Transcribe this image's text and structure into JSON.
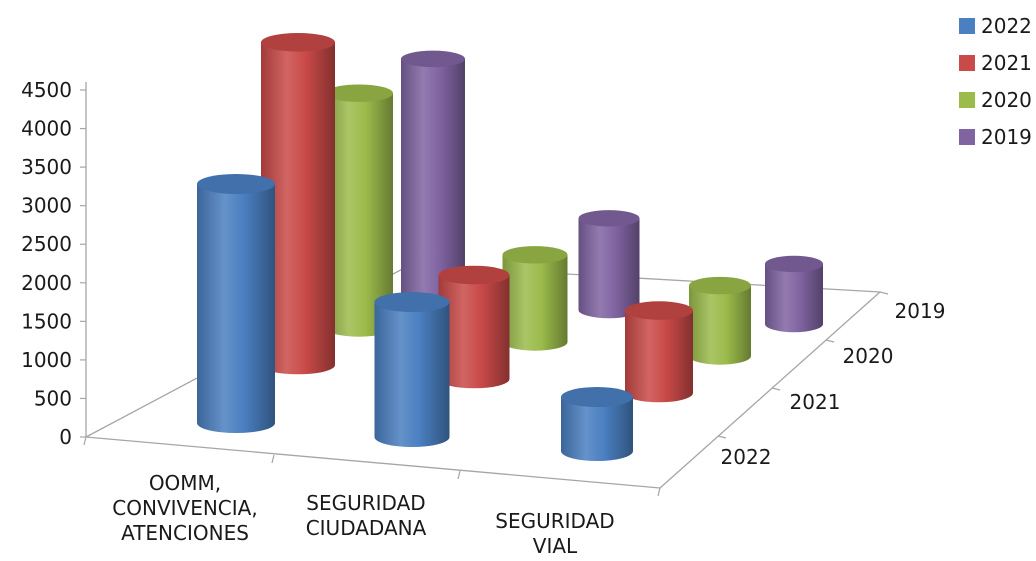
{
  "chart_data": {
    "type": "bar",
    "style": "3d-cylinder",
    "categories": [
      "OOMM, CONVIVENCIA, ATENCIONES",
      "SEGURIDAD CIUDADANA",
      "SEGURIDAD VIAL"
    ],
    "category_lines": [
      [
        "OOMM,",
        "CONVIVENCIA,",
        "ATENCIONES"
      ],
      [
        "SEGURIDAD",
        "CIUDADANA"
      ],
      [
        "SEGURIDAD",
        "VIAL"
      ]
    ],
    "series": [
      {
        "name": "2022",
        "color": "#4a7fc1",
        "values": [
          3100,
          1750,
          700
        ]
      },
      {
        "name": "2021",
        "color": "#c94a48",
        "values": [
          4500,
          1450,
          1150
        ]
      },
      {
        "name": "2020",
        "color": "#9bbb4b",
        "values": [
          3500,
          1300,
          1050
        ]
      },
      {
        "name": "2019",
        "color": "#8064a2",
        "values": [
          3750,
          1450,
          950
        ]
      }
    ],
    "depth_labels": [
      "2019",
      "2020",
      "2021",
      "2022"
    ],
    "y_ticks": [
      "0",
      "500",
      "1000",
      "1500",
      "2000",
      "2500",
      "3000",
      "3500",
      "4000",
      "4500"
    ],
    "ylim": [
      0,
      4500
    ],
    "legend": [
      "2022",
      "2021",
      "2020",
      "2019"
    ],
    "legend_position": "top-right",
    "grid": false,
    "title": "",
    "xlabel": "",
    "ylabel": ""
  }
}
